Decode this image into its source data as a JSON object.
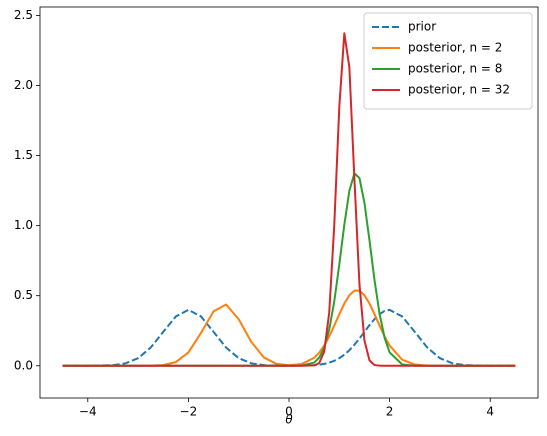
{
  "chart_data": {
    "type": "line",
    "xlabel": "θ",
    "x": [
      -4.5,
      -4,
      -3.5,
      -3.25,
      -3,
      -2.75,
      -2.5,
      -2.25,
      -2,
      -1.75,
      -1.5,
      -1.25,
      -1,
      -0.75,
      -0.5,
      -0.25,
      0,
      0.25,
      0.5,
      0.6,
      0.7,
      0.8,
      0.9,
      1.0,
      1.1,
      1.2,
      1.3,
      1.4,
      1.5,
      1.6,
      1.7,
      1.8,
      1.9,
      2.0,
      2.25,
      2.5,
      2.75,
      3,
      3.25,
      3.5,
      4,
      4.5
    ],
    "series": [
      {
        "name": "prior",
        "color": "#1f77b4",
        "linestyle": "dashed",
        "values": [
          0,
          0.0001,
          0.0044,
          0.0175,
          0.054,
          0.1296,
          0.242,
          0.352,
          0.399,
          0.352,
          0.242,
          0.1296,
          0.054,
          0.0175,
          0.0044,
          0.0009,
          0.0003,
          0.0009,
          0.0044,
          0.0079,
          0.0136,
          0.0224,
          0.0355,
          0.054,
          0.079,
          0.111,
          0.15,
          0.194,
          0.242,
          0.29,
          0.333,
          0.368,
          0.391,
          0.399,
          0.352,
          0.242,
          0.1296,
          0.054,
          0.0175,
          0.0044,
          0.0001,
          0
        ]
      },
      {
        "name": "posterior, n = 2",
        "color": "#ff7f0e",
        "linestyle": "solid",
        "values": [
          0,
          0,
          0,
          0,
          0.0001,
          0.0006,
          0.0049,
          0.0262,
          0.095,
          0.234,
          0.388,
          0.437,
          0.332,
          0.171,
          0.0595,
          0.014,
          0.004,
          0.0125,
          0.0565,
          0.093,
          0.144,
          0.21,
          0.287,
          0.368,
          0.444,
          0.503,
          0.536,
          0.536,
          0.503,
          0.444,
          0.368,
          0.287,
          0.21,
          0.144,
          0.043,
          0.0087,
          0.0012,
          0.0001,
          0,
          0,
          0,
          0
        ]
      },
      {
        "name": "posterior, n = 8",
        "color": "#2ca02c",
        "linestyle": "solid",
        "values": [
          0,
          0,
          0,
          0,
          0,
          0,
          0,
          0,
          0,
          0,
          0,
          0,
          0,
          0,
          0,
          0,
          0,
          0.0014,
          0.0229,
          0.058,
          0.13,
          0.26,
          0.46,
          0.722,
          1.007,
          1.248,
          1.373,
          1.34,
          1.162,
          0.895,
          0.611,
          0.371,
          0.2,
          0.0957,
          0.009,
          0.0004,
          0,
          0,
          0,
          0,
          0,
          0
        ]
      },
      {
        "name": "posterior, n = 32",
        "color": "#d62728",
        "linestyle": "solid",
        "values": [
          0,
          0,
          0,
          0,
          0,
          0,
          0,
          0,
          0,
          0,
          0,
          0,
          0,
          0,
          0,
          0,
          0,
          0,
          0.0024,
          0.0188,
          0.101,
          0.381,
          1.004,
          1.847,
          2.373,
          2.131,
          1.337,
          0.586,
          0.18,
          0.0385,
          0.0058,
          0.0006,
          0,
          0,
          0,
          0,
          0,
          0,
          0,
          0,
          0,
          0
        ]
      }
    ],
    "xlim": [
      -4.95,
      4.95
    ],
    "xticks": [
      {
        "value": -4,
        "label": "−4"
      },
      {
        "value": -2,
        "label": "−2"
      },
      0,
      2,
      4
    ],
    "ylim": [
      -0.23,
      2.56
    ],
    "yticks": [
      {
        "value": 0,
        "label": "0.0"
      },
      {
        "value": 0.5,
        "label": "0.5"
      },
      {
        "value": 1,
        "label": "1.0"
      },
      {
        "value": 1.5,
        "label": "1.5"
      },
      {
        "value": 2,
        "label": "2.0"
      },
      {
        "value": 2.5,
        "label": "2.5"
      }
    ],
    "legend": "upper right",
    "grid": false
  }
}
